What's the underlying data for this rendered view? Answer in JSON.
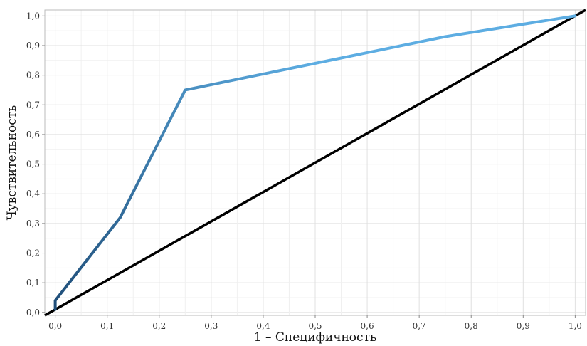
{
  "chart_data": {
    "type": "line",
    "title": "",
    "xlabel": "1 – Специфичность",
    "ylabel": "Чувствительность",
    "xlim": [
      -0.02,
      1.02
    ],
    "ylim": [
      -0.01,
      1.02
    ],
    "grid": true,
    "legend": "none",
    "x_ticks": [
      0.0,
      0.1,
      0.2,
      0.3,
      0.4,
      0.5,
      0.6,
      0.7,
      0.8,
      0.9,
      1.0
    ],
    "x_tick_labels": [
      "0,0",
      "0,1",
      "0,2",
      "0,3",
      "0,4",
      "0,5",
      "0,6",
      "0,7",
      "0,8",
      "0,9",
      "1,0"
    ],
    "y_ticks": [
      0.0,
      0.1,
      0.2,
      0.3,
      0.4,
      0.5,
      0.6,
      0.7,
      0.8,
      0.9,
      1.0
    ],
    "y_tick_labels": [
      "0,0",
      "0,1",
      "0,2",
      "0,3",
      "0,4",
      "0,5",
      "0,6",
      "0,7",
      "0,8",
      "0,9",
      "1,0"
    ],
    "series": [
      {
        "color_start": "#1f4e79",
        "color_end": "#5dade2",
        "x": [
          0.0,
          0.0,
          0.125,
          0.25,
          0.75,
          1.0
        ],
        "y": [
          0.01,
          0.04,
          0.32,
          0.75,
          0.93,
          1.0
        ]
      },
      {
        "color_start": "#000000",
        "color_end": "#000000",
        "x": [
          -0.02,
          1.02
        ],
        "y": [
          -0.01,
          1.02
        ]
      }
    ]
  }
}
